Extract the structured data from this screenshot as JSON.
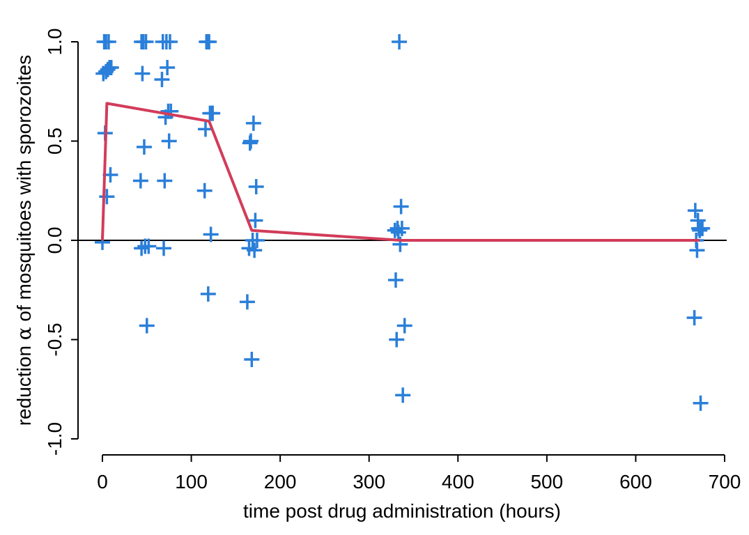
{
  "chart_data": {
    "type": "scatter",
    "title": "",
    "xlabel": "time post drug administration (hours)",
    "ylabel_prefix": "reduction ",
    "ylabel_symbol": "α",
    "ylabel_suffix": " of mosquitoes with sporozoites",
    "xlim": [
      0,
      700
    ],
    "ylim": [
      -1.0,
      1.0
    ],
    "xticks": [
      0,
      100,
      200,
      300,
      400,
      500,
      600,
      700
    ],
    "xtick_labels": [
      "0",
      "100",
      "200",
      "300",
      "400",
      "500",
      "600",
      "700"
    ],
    "yticks": [
      -1.0,
      -0.5,
      0.0,
      0.5,
      1.0
    ],
    "ytick_labels": [
      "-1.0",
      "-0.5",
      "0.0",
      "0.5",
      "1.0"
    ],
    "grid": false,
    "reference_line_y": 0,
    "colors": {
      "points": "#2a7fd9",
      "fit": "#d23c5a",
      "reference": "#000000"
    },
    "series": [
      {
        "type": "scatter",
        "marker": "plus",
        "x": [
          0,
          1,
          2,
          3,
          4,
          4,
          5,
          6,
          7,
          8,
          9,
          10,
          43,
          44,
          44,
          45,
          46,
          47,
          48,
          49,
          50,
          52,
          67,
          68,
          69,
          70,
          71,
          72,
          73,
          74,
          75,
          76,
          77,
          115,
          116,
          117,
          118,
          119,
          120,
          121,
          122,
          123,
          124,
          163,
          165,
          166,
          167,
          168,
          169,
          170,
          171,
          172,
          173,
          174,
          329,
          330,
          331,
          332,
          333,
          334,
          335,
          336,
          337,
          338,
          340,
          666,
          667,
          668,
          669,
          670,
          671,
          672,
          673,
          674,
          675
        ],
        "y": [
          -0.01,
          0.84,
          1.0,
          0.54,
          0.85,
          1.0,
          0.22,
          0.86,
          1.0,
          0.87,
          0.33,
          0.87,
          0.3,
          1.0,
          -0.04,
          0.84,
          1.0,
          0.47,
          -0.03,
          1.0,
          -0.43,
          -0.03,
          0.81,
          1.0,
          -0.04,
          0.3,
          0.62,
          1.0,
          0.87,
          0.65,
          0.5,
          1.0,
          0.65,
          0.25,
          0.56,
          1.0,
          1.0,
          -0.27,
          1.0,
          0.64,
          0.03,
          0.64,
          0.64,
          -0.31,
          -0.04,
          0.49,
          0.5,
          -0.6,
          0.0,
          0.59,
          -0.05,
          0.1,
          0.27,
          0.0,
          0.05,
          -0.2,
          -0.5,
          0.06,
          0.04,
          1.0,
          -0.02,
          0.17,
          0.06,
          -0.78,
          -0.43,
          -0.39,
          0.15,
          0.0,
          -0.05,
          0.1,
          0.06,
          0.05,
          -0.82,
          0.06,
          0.06
        ]
      },
      {
        "type": "line",
        "x": [
          0,
          5,
          120,
          168,
          336,
          672
        ],
        "y": [
          0,
          0.69,
          0.6,
          0.05,
          0.0,
          0.0
        ]
      }
    ]
  }
}
